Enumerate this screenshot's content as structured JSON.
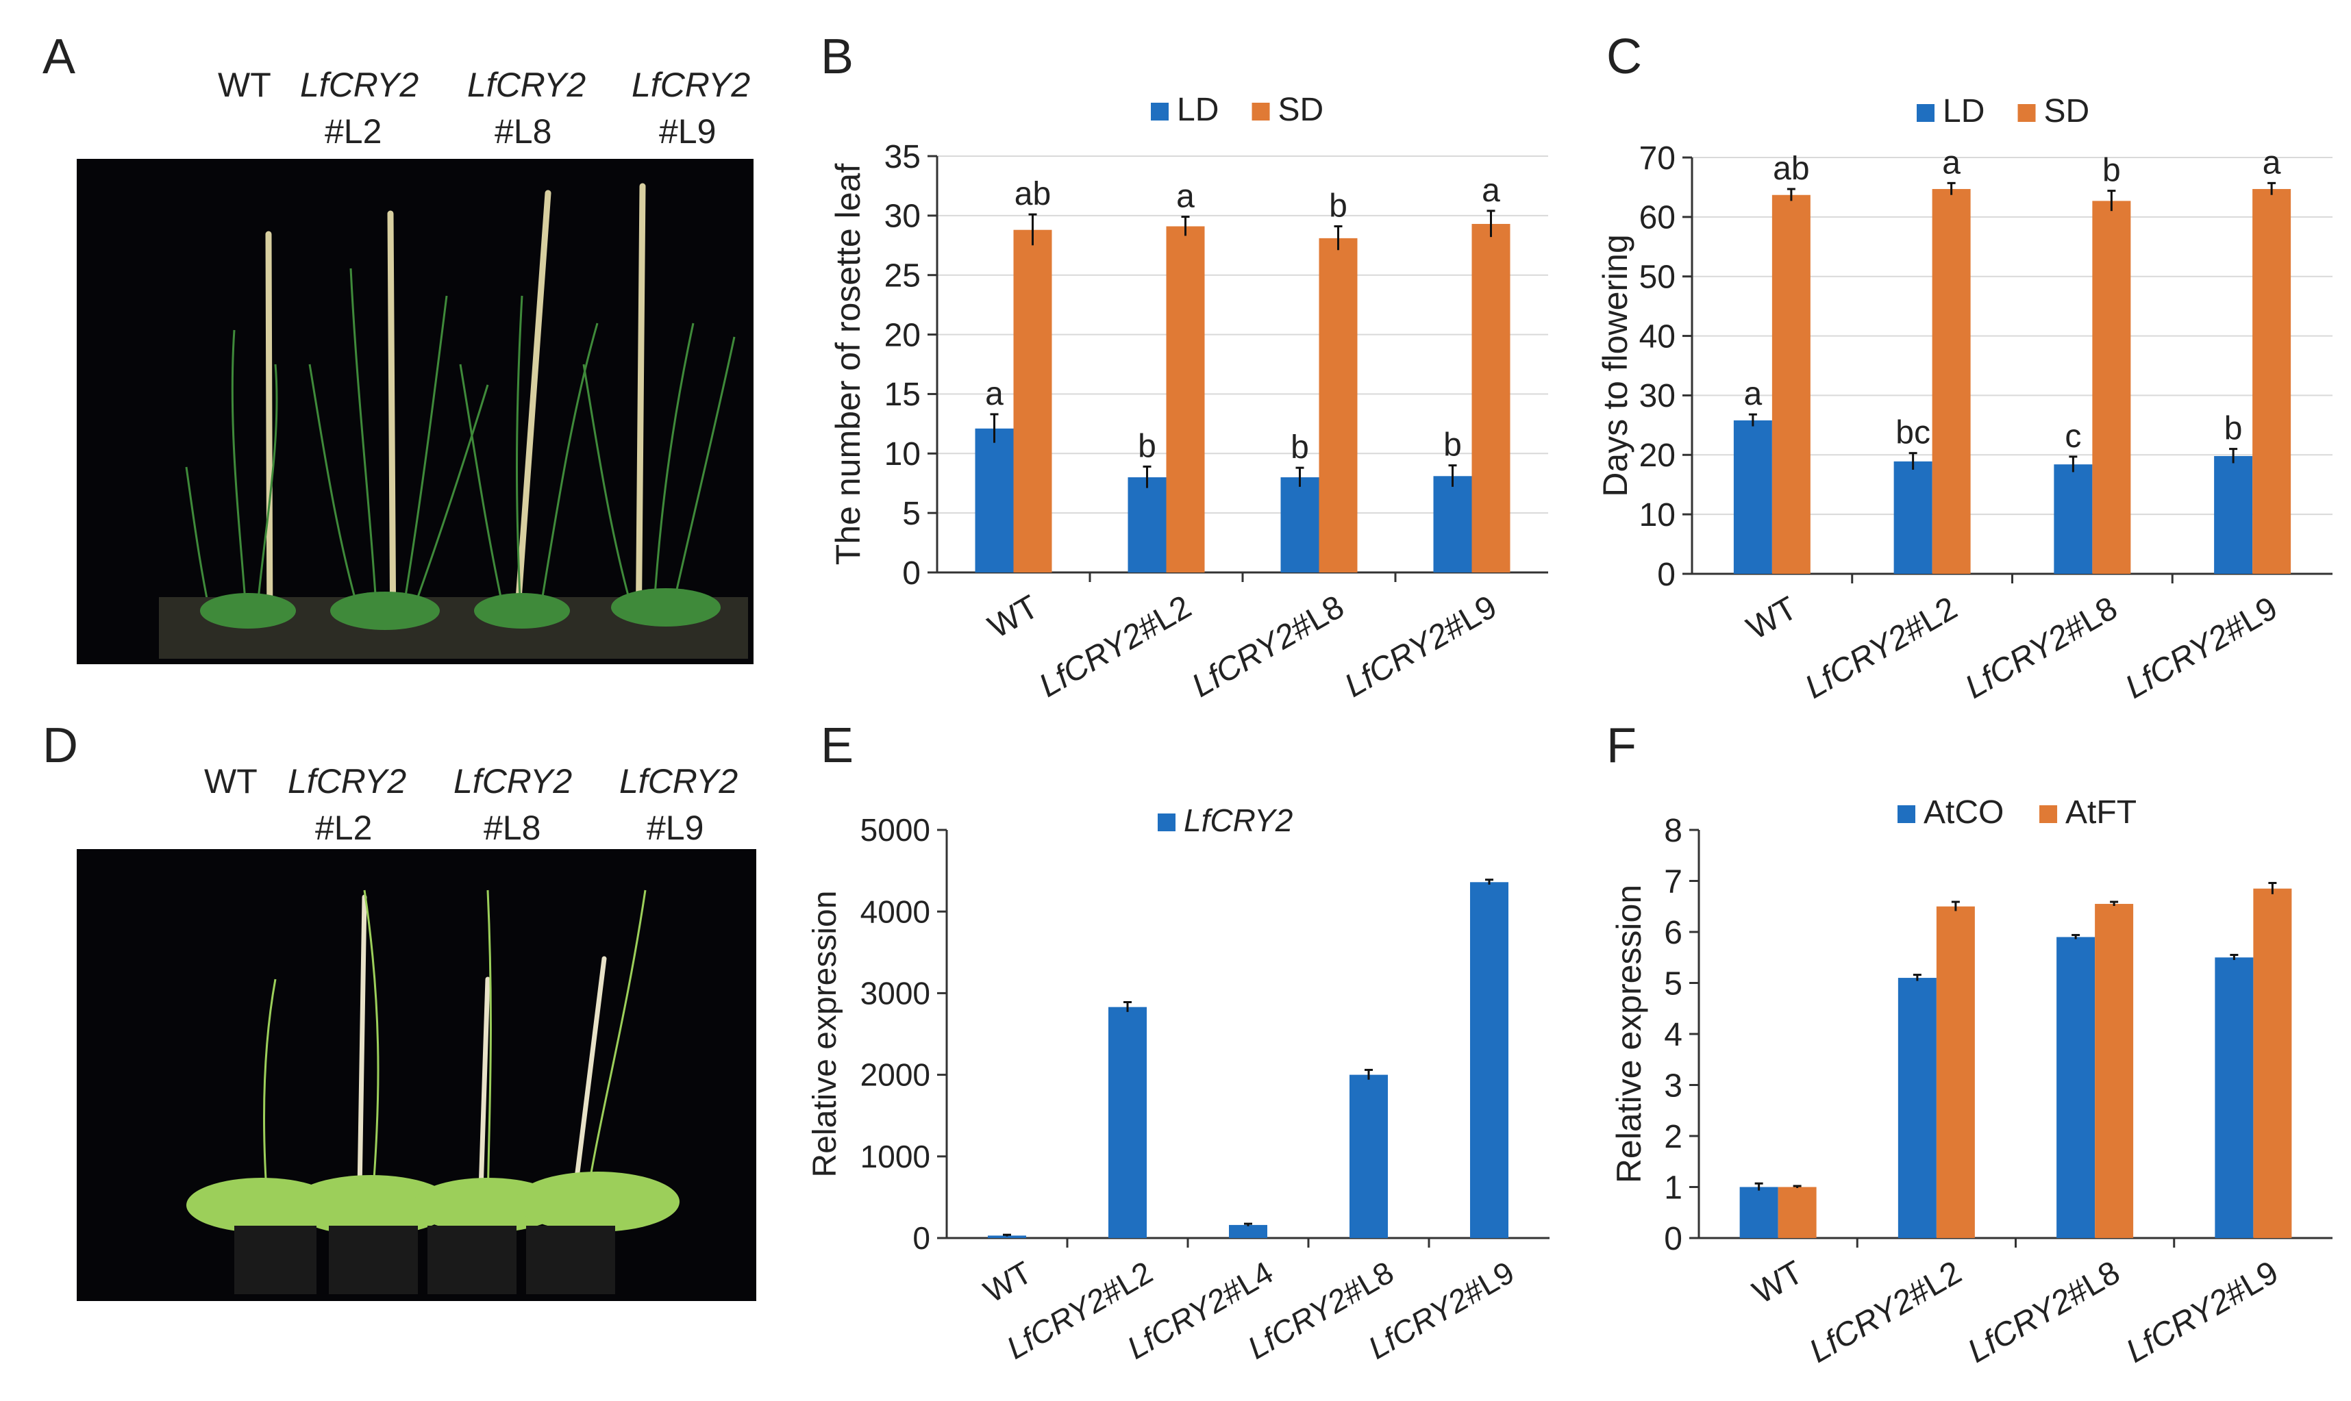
{
  "panels": {
    "A": "A",
    "B": "B",
    "C": "C",
    "D": "D",
    "E": "E",
    "F": "F"
  },
  "photo_labels": {
    "wt": "WT",
    "gene": "LfCRY2",
    "l2": "#L2",
    "l8": "#L8",
    "l9": "#L9"
  },
  "colors": {
    "blue": "#1f6fc0",
    "orange": "#e07a35",
    "axis": "#333333",
    "grid": "#d9d9d9",
    "photo_bg": "#050508",
    "plant": "#3f8a3a"
  },
  "chart_data": [
    {
      "id": "B",
      "type": "bar",
      "ylabel": "The number of rosette leaf",
      "ylim": [
        0,
        35
      ],
      "yticks": [
        0,
        5,
        10,
        15,
        20,
        25,
        30,
        35
      ],
      "grid": true,
      "legend": "top-center",
      "categories": [
        "WT",
        "LfCRY2#L2",
        "LfCRY2#L8",
        "LfCRY2#L9"
      ],
      "series": [
        {
          "name": "LD",
          "color": "#1f6fc0",
          "values": [
            12.1,
            8.0,
            8.0,
            8.1
          ],
          "errors": [
            1.2,
            0.9,
            0.8,
            0.9
          ],
          "letters": [
            "a",
            "b",
            "b",
            "b"
          ]
        },
        {
          "name": "SD",
          "color": "#e07a35",
          "values": [
            28.8,
            29.1,
            28.1,
            29.3
          ],
          "errors": [
            1.3,
            0.8,
            1.0,
            1.1
          ],
          "letters": [
            "ab",
            "a",
            "b",
            "a"
          ]
        }
      ]
    },
    {
      "id": "C",
      "type": "bar",
      "ylabel": "Days to flowering",
      "ylim": [
        0,
        70
      ],
      "yticks": [
        0,
        10,
        20,
        30,
        40,
        50,
        60,
        70
      ],
      "grid": true,
      "legend": "top-center",
      "categories": [
        "WT",
        "LfCRY2#L2",
        "LfCRY2#L8",
        "LfCRY2#L9"
      ],
      "series": [
        {
          "name": "LD",
          "color": "#1f6fc0",
          "values": [
            25.8,
            18.9,
            18.4,
            19.8
          ],
          "errors": [
            1.0,
            1.4,
            1.3,
            1.2
          ],
          "letters": [
            "a",
            "bc",
            "c",
            "b"
          ]
        },
        {
          "name": "SD",
          "color": "#e07a35",
          "values": [
            63.7,
            64.7,
            62.7,
            64.7
          ],
          "errors": [
            1.0,
            1.0,
            1.7,
            1.0
          ],
          "letters": [
            "ab",
            "a",
            "b",
            "a"
          ]
        }
      ]
    },
    {
      "id": "E",
      "type": "bar",
      "ylabel": "Relative expression",
      "ylim": [
        0,
        5000
      ],
      "yticks": [
        0,
        1000,
        2000,
        3000,
        4000,
        5000
      ],
      "grid": false,
      "legend": "top-center",
      "categories": [
        "WT",
        "LfCRY2#L2",
        "LfCRY2#L4",
        "LfCRY2#L8",
        "LfCRY2#L9"
      ],
      "series": [
        {
          "name": "LfCRY2",
          "color": "#1f6fc0",
          "italic": true,
          "values": [
            30,
            2830,
            160,
            2000,
            4360
          ],
          "errors": [
            10,
            60,
            15,
            60,
            30
          ],
          "letters": []
        }
      ]
    },
    {
      "id": "F",
      "type": "bar",
      "ylabel": "Relative expression",
      "ylim": [
        0,
        8
      ],
      "yticks": [
        0,
        1,
        2,
        3,
        4,
        5,
        6,
        7,
        8
      ],
      "grid": false,
      "legend": "top-center",
      "categories": [
        "WT",
        "LfCRY2#L2",
        "LfCRY2#L8",
        "LfCRY2#L9"
      ],
      "series": [
        {
          "name": "AtCO",
          "color": "#1f6fc0",
          "values": [
            1.0,
            5.1,
            5.9,
            5.5
          ],
          "errors": [
            0.07,
            0.06,
            0.04,
            0.05
          ],
          "letters": []
        },
        {
          "name": "AtFT",
          "color": "#e07a35",
          "values": [
            1.0,
            6.5,
            6.55,
            6.85
          ],
          "errors": [
            0.02,
            0.09,
            0.04,
            0.11
          ],
          "letters": []
        }
      ]
    }
  ]
}
